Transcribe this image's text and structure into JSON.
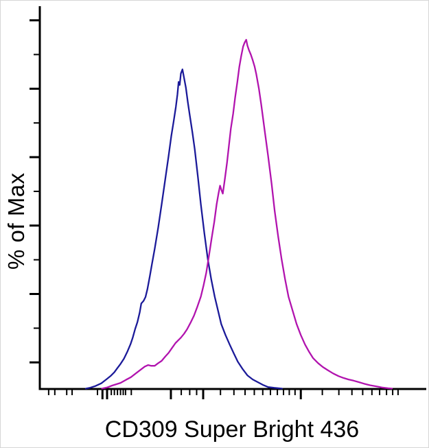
{
  "figure": {
    "background_color": "#ffffff",
    "axis_color": "#000000",
    "frame_border_color": "#d6d6d6"
  },
  "chart_data": {
    "type": "line",
    "variant": "flow-cytometry-overlay-histogram",
    "title": "",
    "xlabel": "CD309 Super Bright 436",
    "ylabel": "% of Max",
    "legend": "none",
    "grid": false,
    "x_axis": {
      "scale": "log-biexponential",
      "tick_labels": "none"
    },
    "y_axis": {
      "range_percent_of_max": [
        0,
        100
      ],
      "tick_labels": "none"
    },
    "series": [
      {
        "name": "blue-histogram-curve",
        "color": "#1b1a99",
        "peak_x_percent": 37.1,
        "peak_y_percent_of_max": 84,
        "points": [
          [
            12.0,
            0.1
          ],
          [
            13.0,
            0.3
          ],
          [
            14.5,
            0.8
          ],
          [
            16.0,
            1.5
          ],
          [
            17.4,
            2.6
          ],
          [
            18.5,
            3.5
          ],
          [
            19.4,
            4.4
          ],
          [
            20.1,
            5.4
          ],
          [
            21.0,
            6.6
          ],
          [
            21.9,
            8.0
          ],
          [
            22.8,
            9.9
          ],
          [
            23.6,
            11.8
          ],
          [
            24.2,
            13.6
          ],
          [
            24.8,
            15.8
          ],
          [
            25.4,
            17.6
          ],
          [
            26.0,
            20.2
          ],
          [
            26.4,
            22.5
          ],
          [
            27.0,
            23.2
          ],
          [
            27.5,
            24.2
          ],
          [
            28.0,
            26.3
          ],
          [
            28.6,
            29.6
          ],
          [
            29.2,
            33.0
          ],
          [
            29.9,
            36.9
          ],
          [
            30.8,
            42.5
          ],
          [
            31.7,
            48.6
          ],
          [
            32.6,
            55.0
          ],
          [
            33.5,
            61.3
          ],
          [
            34.2,
            66.5
          ],
          [
            34.8,
            70.3
          ],
          [
            35.4,
            74.2
          ],
          [
            35.8,
            77.5
          ],
          [
            36.1,
            80.8
          ],
          [
            36.4,
            80.0
          ],
          [
            36.7,
            83.0
          ],
          [
            37.1,
            84.1
          ],
          [
            37.5,
            82.0
          ],
          [
            38.0,
            79.3
          ],
          [
            38.5,
            75.5
          ],
          [
            39.0,
            72.1
          ],
          [
            39.7,
            67.5
          ],
          [
            40.3,
            63.1
          ],
          [
            41.1,
            56.0
          ],
          [
            41.9,
            48.6
          ],
          [
            42.8,
            41.0
          ],
          [
            43.7,
            34.2
          ],
          [
            44.6,
            28.8
          ],
          [
            45.5,
            24.3
          ],
          [
            46.4,
            20.5
          ],
          [
            47.2,
            17.1
          ],
          [
            48.3,
            14.2
          ],
          [
            49.4,
            11.7
          ],
          [
            50.5,
            9.3
          ],
          [
            51.5,
            7.2
          ],
          [
            52.8,
            5.2
          ],
          [
            54.0,
            3.6
          ],
          [
            55.4,
            2.5
          ],
          [
            56.7,
            1.8
          ],
          [
            58.0,
            1.1
          ],
          [
            59.4,
            0.5
          ],
          [
            61.0,
            0.3
          ],
          [
            63.0,
            0.1
          ]
        ]
      },
      {
        "name": "magenta-histogram-curve",
        "color": "#b113ae",
        "peak_x_percent": 53.7,
        "peak_y_percent_of_max": 92,
        "points": [
          [
            16.2,
            0.1
          ],
          [
            17.5,
            0.4
          ],
          [
            18.8,
            0.9
          ],
          [
            21.0,
            1.6
          ],
          [
            22.4,
            2.4
          ],
          [
            23.7,
            3.1
          ],
          [
            25.1,
            4.2
          ],
          [
            26.4,
            5.2
          ],
          [
            27.3,
            5.9
          ],
          [
            28.2,
            6.3
          ],
          [
            29.0,
            6.1
          ],
          [
            29.9,
            6.1
          ],
          [
            30.8,
            6.8
          ],
          [
            31.7,
            7.4
          ],
          [
            32.6,
            8.5
          ],
          [
            33.5,
            9.5
          ],
          [
            34.4,
            10.8
          ],
          [
            35.3,
            12.1
          ],
          [
            36.0,
            12.8
          ],
          [
            36.7,
            13.5
          ],
          [
            37.5,
            14.5
          ],
          [
            38.3,
            15.7
          ],
          [
            39.2,
            17.4
          ],
          [
            40.1,
            19.3
          ],
          [
            41.0,
            21.7
          ],
          [
            41.9,
            24.3
          ],
          [
            42.6,
            27.3
          ],
          [
            43.3,
            30.6
          ],
          [
            44.0,
            35.0
          ],
          [
            44.7,
            39.6
          ],
          [
            45.4,
            44.0
          ],
          [
            46.0,
            48.6
          ],
          [
            46.5,
            51.5
          ],
          [
            46.9,
            53.5
          ],
          [
            47.3,
            52.2
          ],
          [
            47.6,
            51.4
          ],
          [
            48.1,
            55.0
          ],
          [
            48.7,
            59.5
          ],
          [
            49.2,
            64.0
          ],
          [
            49.7,
            68.5
          ],
          [
            50.3,
            72.5
          ],
          [
            50.8,
            76.6
          ],
          [
            51.4,
            80.8
          ],
          [
            51.9,
            84.7
          ],
          [
            52.4,
            87.6
          ],
          [
            52.9,
            90.1
          ],
          [
            53.3,
            91.2
          ],
          [
            53.7,
            91.9
          ],
          [
            54.0,
            90.4
          ],
          [
            54.4,
            89.2
          ],
          [
            54.9,
            88.0
          ],
          [
            55.4,
            86.5
          ],
          [
            55.9,
            84.8
          ],
          [
            56.3,
            82.9
          ],
          [
            57.0,
            79.0
          ],
          [
            57.6,
            74.8
          ],
          [
            58.5,
            68.0
          ],
          [
            59.4,
            61.3
          ],
          [
            60.3,
            54.0
          ],
          [
            61.1,
            46.8
          ],
          [
            62.0,
            40.2
          ],
          [
            62.9,
            34.2
          ],
          [
            63.8,
            28.9
          ],
          [
            64.7,
            24.3
          ],
          [
            65.8,
            20.5
          ],
          [
            66.8,
            17.1
          ],
          [
            67.9,
            14.2
          ],
          [
            69.0,
            11.7
          ],
          [
            70.1,
            9.7
          ],
          [
            71.1,
            8.1
          ],
          [
            72.4,
            6.8
          ],
          [
            73.6,
            5.8
          ],
          [
            75.0,
            4.9
          ],
          [
            76.3,
            4.1
          ],
          [
            77.7,
            3.4
          ],
          [
            79.0,
            2.9
          ],
          [
            80.3,
            2.5
          ],
          [
            81.6,
            2.2
          ],
          [
            83.0,
            1.8
          ],
          [
            84.3,
            1.4
          ],
          [
            85.9,
            1.0
          ],
          [
            87.5,
            0.7
          ],
          [
            89.0,
            0.4
          ],
          [
            90.6,
            0.2
          ],
          [
            91.6,
            0.1
          ]
        ]
      }
    ],
    "x_ticks": {
      "major_percent": [
        16.3,
        17.5,
        34.1,
        42.5,
        67.9
      ],
      "minor_percent": [
        2.3,
        3.9,
        7.0,
        8.4,
        15.0,
        18.6,
        19.4,
        20.2,
        21.0,
        21.7,
        22.3,
        23.8,
        36.8,
        39.0,
        40.8,
        47.0,
        50.5,
        53.4,
        55.8,
        58.0,
        60.0,
        61.8,
        63.4,
        64.9,
        66.4,
        73.5,
        77.8,
        81.2,
        84.0,
        86.4,
        88.4,
        90.2,
        91.8,
        93.2
      ]
    },
    "y_ticks": {
      "major_percent": [
        7,
        25,
        43,
        61,
        79,
        97
      ],
      "minor_percent": [
        16,
        34,
        52,
        70,
        88
      ]
    }
  }
}
